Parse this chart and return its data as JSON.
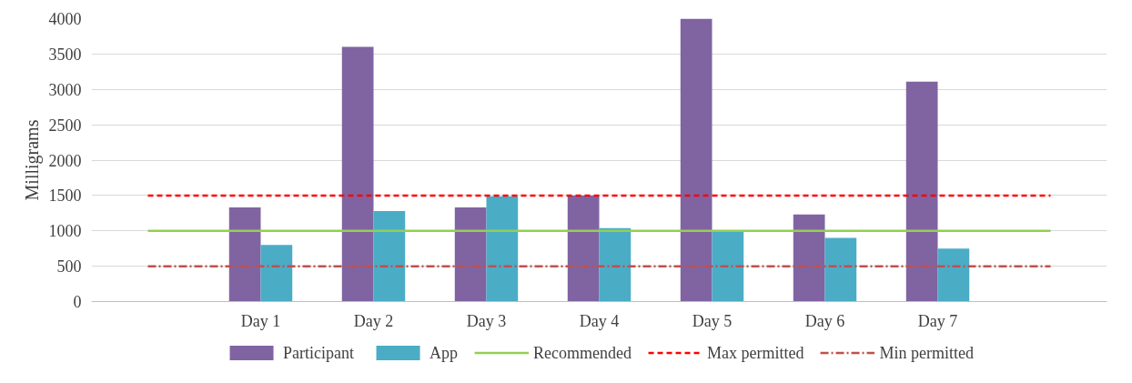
{
  "chart_data": {
    "type": "bar",
    "ylabel": "Milligrams",
    "categories": [
      null,
      "Day 1",
      "Day 2",
      "Day 3",
      "Day 4",
      "Day 5",
      "Day 6",
      "Day 7",
      null
    ],
    "series": [
      {
        "name": "Participant",
        "color": "#8064a2",
        "values": [
          null,
          1330,
          3600,
          1330,
          1500,
          4000,
          1230,
          3110,
          null
        ]
      },
      {
        "name": "App",
        "color": "#4bacc6",
        "values": [
          null,
          800,
          1280,
          1490,
          1040,
          1000,
          900,
          750,
          null
        ]
      },
      {
        "name": "Recommended",
        "type": "line",
        "line_style": "solid",
        "color": "#92d050",
        "values": [
          1000,
          1000,
          1000,
          1000,
          1000,
          1000,
          1000,
          1000,
          1000
        ]
      },
      {
        "name": "Max permitted",
        "type": "line",
        "line_style": "dashed",
        "color": "#ff0000",
        "values": [
          1500,
          1500,
          1500,
          1500,
          1500,
          1500,
          1500,
          1500,
          1500
        ]
      },
      {
        "name": "Min permitted",
        "type": "line",
        "line_style": "dashdot",
        "color": "#c0504d",
        "values": [
          500,
          500,
          500,
          500,
          500,
          500,
          500,
          500,
          500
        ]
      }
    ],
    "ylim": [
      0,
      4000
    ],
    "yticks": [
      0,
      500,
      1000,
      1500,
      2000,
      2500,
      3000,
      3500,
      4000
    ],
    "grid": "y",
    "legend": "bottom"
  }
}
